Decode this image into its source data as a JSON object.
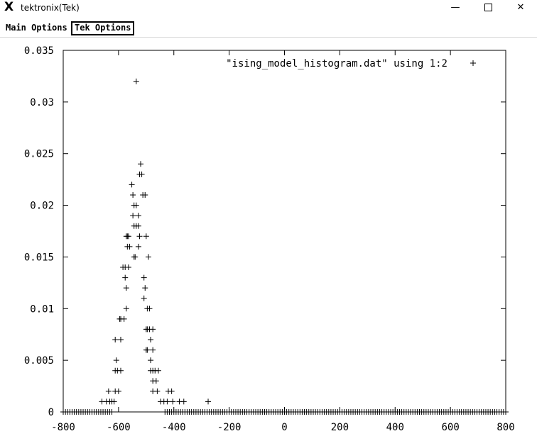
{
  "window": {
    "title": "tektronix(Tek)",
    "icon": "x-logo-icon",
    "controls": {
      "minimize": "—",
      "maximize": "☐",
      "close": "✕"
    }
  },
  "menubar": {
    "main_options": "Main Options",
    "tek_options": "Tek Options"
  },
  "chart_data": {
    "type": "scatter",
    "marker": "+",
    "title": "",
    "legend": "\"ising_model_histogram.dat\" using 1:2",
    "legend_position": "top-right",
    "xlabel": "",
    "ylabel": "",
    "xlim": [
      -800,
      800
    ],
    "ylim": [
      0,
      0.035
    ],
    "grid": false,
    "xticks": [
      -800,
      -600,
      -400,
      -200,
      0,
      200,
      400,
      600,
      800
    ],
    "xtick_labels": [
      "-800",
      "-600",
      "-400",
      "-200",
      "0",
      "200",
      "400",
      "600",
      "800"
    ],
    "yticks": [
      0,
      0.005,
      0.01,
      0.015,
      0.02,
      0.025,
      0.03,
      0.035
    ],
    "ytick_labels": [
      "0",
      "0.005",
      "0.01",
      "0.015",
      "0.02",
      "0.025",
      "0.03",
      "0.035"
    ],
    "series": [
      {
        "name": "\"ising_model_histogram.dat\" using 1:2",
        "points": [
          [
            -536,
            0.032
          ],
          [
            -520,
            0.024
          ],
          [
            -524,
            0.023
          ],
          [
            -516,
            0.023
          ],
          [
            -552,
            0.022
          ],
          [
            -548,
            0.021
          ],
          [
            -512,
            0.021
          ],
          [
            -504,
            0.021
          ],
          [
            -544,
            0.02
          ],
          [
            -536,
            0.02
          ],
          [
            -548,
            0.019
          ],
          [
            -528,
            0.019
          ],
          [
            -544,
            0.018
          ],
          [
            -536,
            0.018
          ],
          [
            -528,
            0.018
          ],
          [
            -572,
            0.017
          ],
          [
            -568,
            0.017
          ],
          [
            -564,
            0.017
          ],
          [
            -524,
            0.017
          ],
          [
            -500,
            0.017
          ],
          [
            -568,
            0.016
          ],
          [
            -560,
            0.016
          ],
          [
            -528,
            0.016
          ],
          [
            -544,
            0.015
          ],
          [
            -540,
            0.015
          ],
          [
            -492,
            0.015
          ],
          [
            -584,
            0.014
          ],
          [
            -576,
            0.014
          ],
          [
            -564,
            0.014
          ],
          [
            -576,
            0.013
          ],
          [
            -508,
            0.013
          ],
          [
            -572,
            0.012
          ],
          [
            -504,
            0.012
          ],
          [
            -508,
            0.011
          ],
          [
            -572,
            0.01
          ],
          [
            -496,
            0.01
          ],
          [
            -488,
            0.01
          ],
          [
            -596,
            0.009
          ],
          [
            -592,
            0.009
          ],
          [
            -580,
            0.009
          ],
          [
            -612,
            0.007
          ],
          [
            -592,
            0.007
          ],
          [
            -484,
            0.007
          ],
          [
            -500,
            0.008
          ],
          [
            -496,
            0.008
          ],
          [
            -488,
            0.008
          ],
          [
            -476,
            0.008
          ],
          [
            -500,
            0.006
          ],
          [
            -496,
            0.006
          ],
          [
            -476,
            0.006
          ],
          [
            -608,
            0.005
          ],
          [
            -484,
            0.005
          ],
          [
            -612,
            0.004
          ],
          [
            -604,
            0.004
          ],
          [
            -592,
            0.004
          ],
          [
            -484,
            0.004
          ],
          [
            -476,
            0.004
          ],
          [
            -468,
            0.004
          ],
          [
            -456,
            0.004
          ],
          [
            -476,
            0.003
          ],
          [
            -464,
            0.003
          ],
          [
            -636,
            0.002
          ],
          [
            -612,
            0.002
          ],
          [
            -600,
            0.002
          ],
          [
            -476,
            0.002
          ],
          [
            -460,
            0.002
          ],
          [
            -420,
            0.002
          ],
          [
            -408,
            0.002
          ],
          [
            -660,
            0.001
          ],
          [
            -644,
            0.001
          ],
          [
            -632,
            0.001
          ],
          [
            -624,
            0.001
          ],
          [
            -616,
            0.001
          ],
          [
            -448,
            0.001
          ],
          [
            -436,
            0.001
          ],
          [
            -424,
            0.001
          ],
          [
            -404,
            0.001
          ],
          [
            -380,
            0.001
          ],
          [
            -364,
            0.001
          ],
          [
            -276,
            0.001
          ]
        ],
        "baseline_zero_points": {
          "x_start": -800,
          "x_end": 800,
          "step": 8,
          "y": 0,
          "excluded_range": [
            -620,
            -432
          ]
        }
      }
    ]
  }
}
